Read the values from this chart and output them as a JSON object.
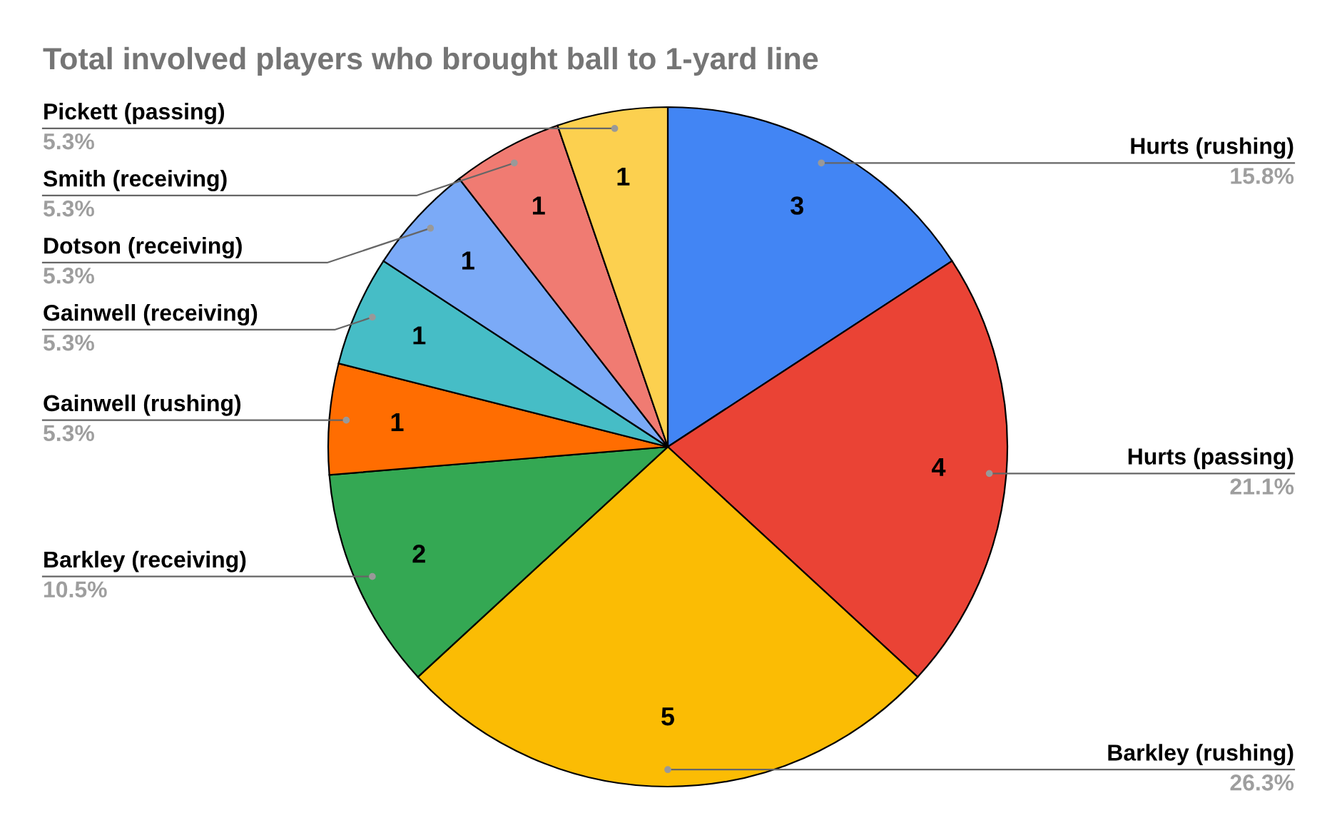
{
  "chart_data": {
    "type": "pie",
    "title": "Total involved players who brought ball to 1-yard line",
    "categories": [
      "Hurts (rushing)",
      "Hurts (passing)",
      "Barkley (rushing)",
      "Barkley (receiving)",
      "Gainwell (rushing)",
      "Gainwell (receiving)",
      "Dotson (receiving)",
      "Smith (receiving)",
      "Pickett (passing)"
    ],
    "values": [
      3,
      4,
      5,
      2,
      1,
      1,
      1,
      1,
      1
    ],
    "colors": [
      "#4285f4",
      "#ea4335",
      "#fbbc04",
      "#34a853",
      "#ff6d01",
      "#46bdc6",
      "#7baaf7",
      "#f07b72",
      "#fcd04f"
    ],
    "value_labels": [
      "3",
      "4",
      "5",
      "2",
      "1",
      "1",
      "1",
      "1",
      "1"
    ],
    "annotations": [
      {
        "text": "15.8%",
        "x": "Hurts (rushing)"
      },
      {
        "text": "21.1%",
        "x": "Hurts (passing)"
      },
      {
        "text": "26.3%",
        "x": "Barkley (rushing)"
      },
      {
        "text": "10.5%",
        "x": "Barkley (receiving)"
      },
      {
        "text": "5.3%",
        "x": "Gainwell (rushing)"
      },
      {
        "text": "5.3%",
        "x": "Gainwell (receiving)"
      },
      {
        "text": "5.3%",
        "x": "Dotson (receiving)"
      },
      {
        "text": "5.3%",
        "x": "Smith (receiving)"
      },
      {
        "text": "5.3%",
        "x": "Pickett (passing)"
      }
    ],
    "legend": false
  }
}
